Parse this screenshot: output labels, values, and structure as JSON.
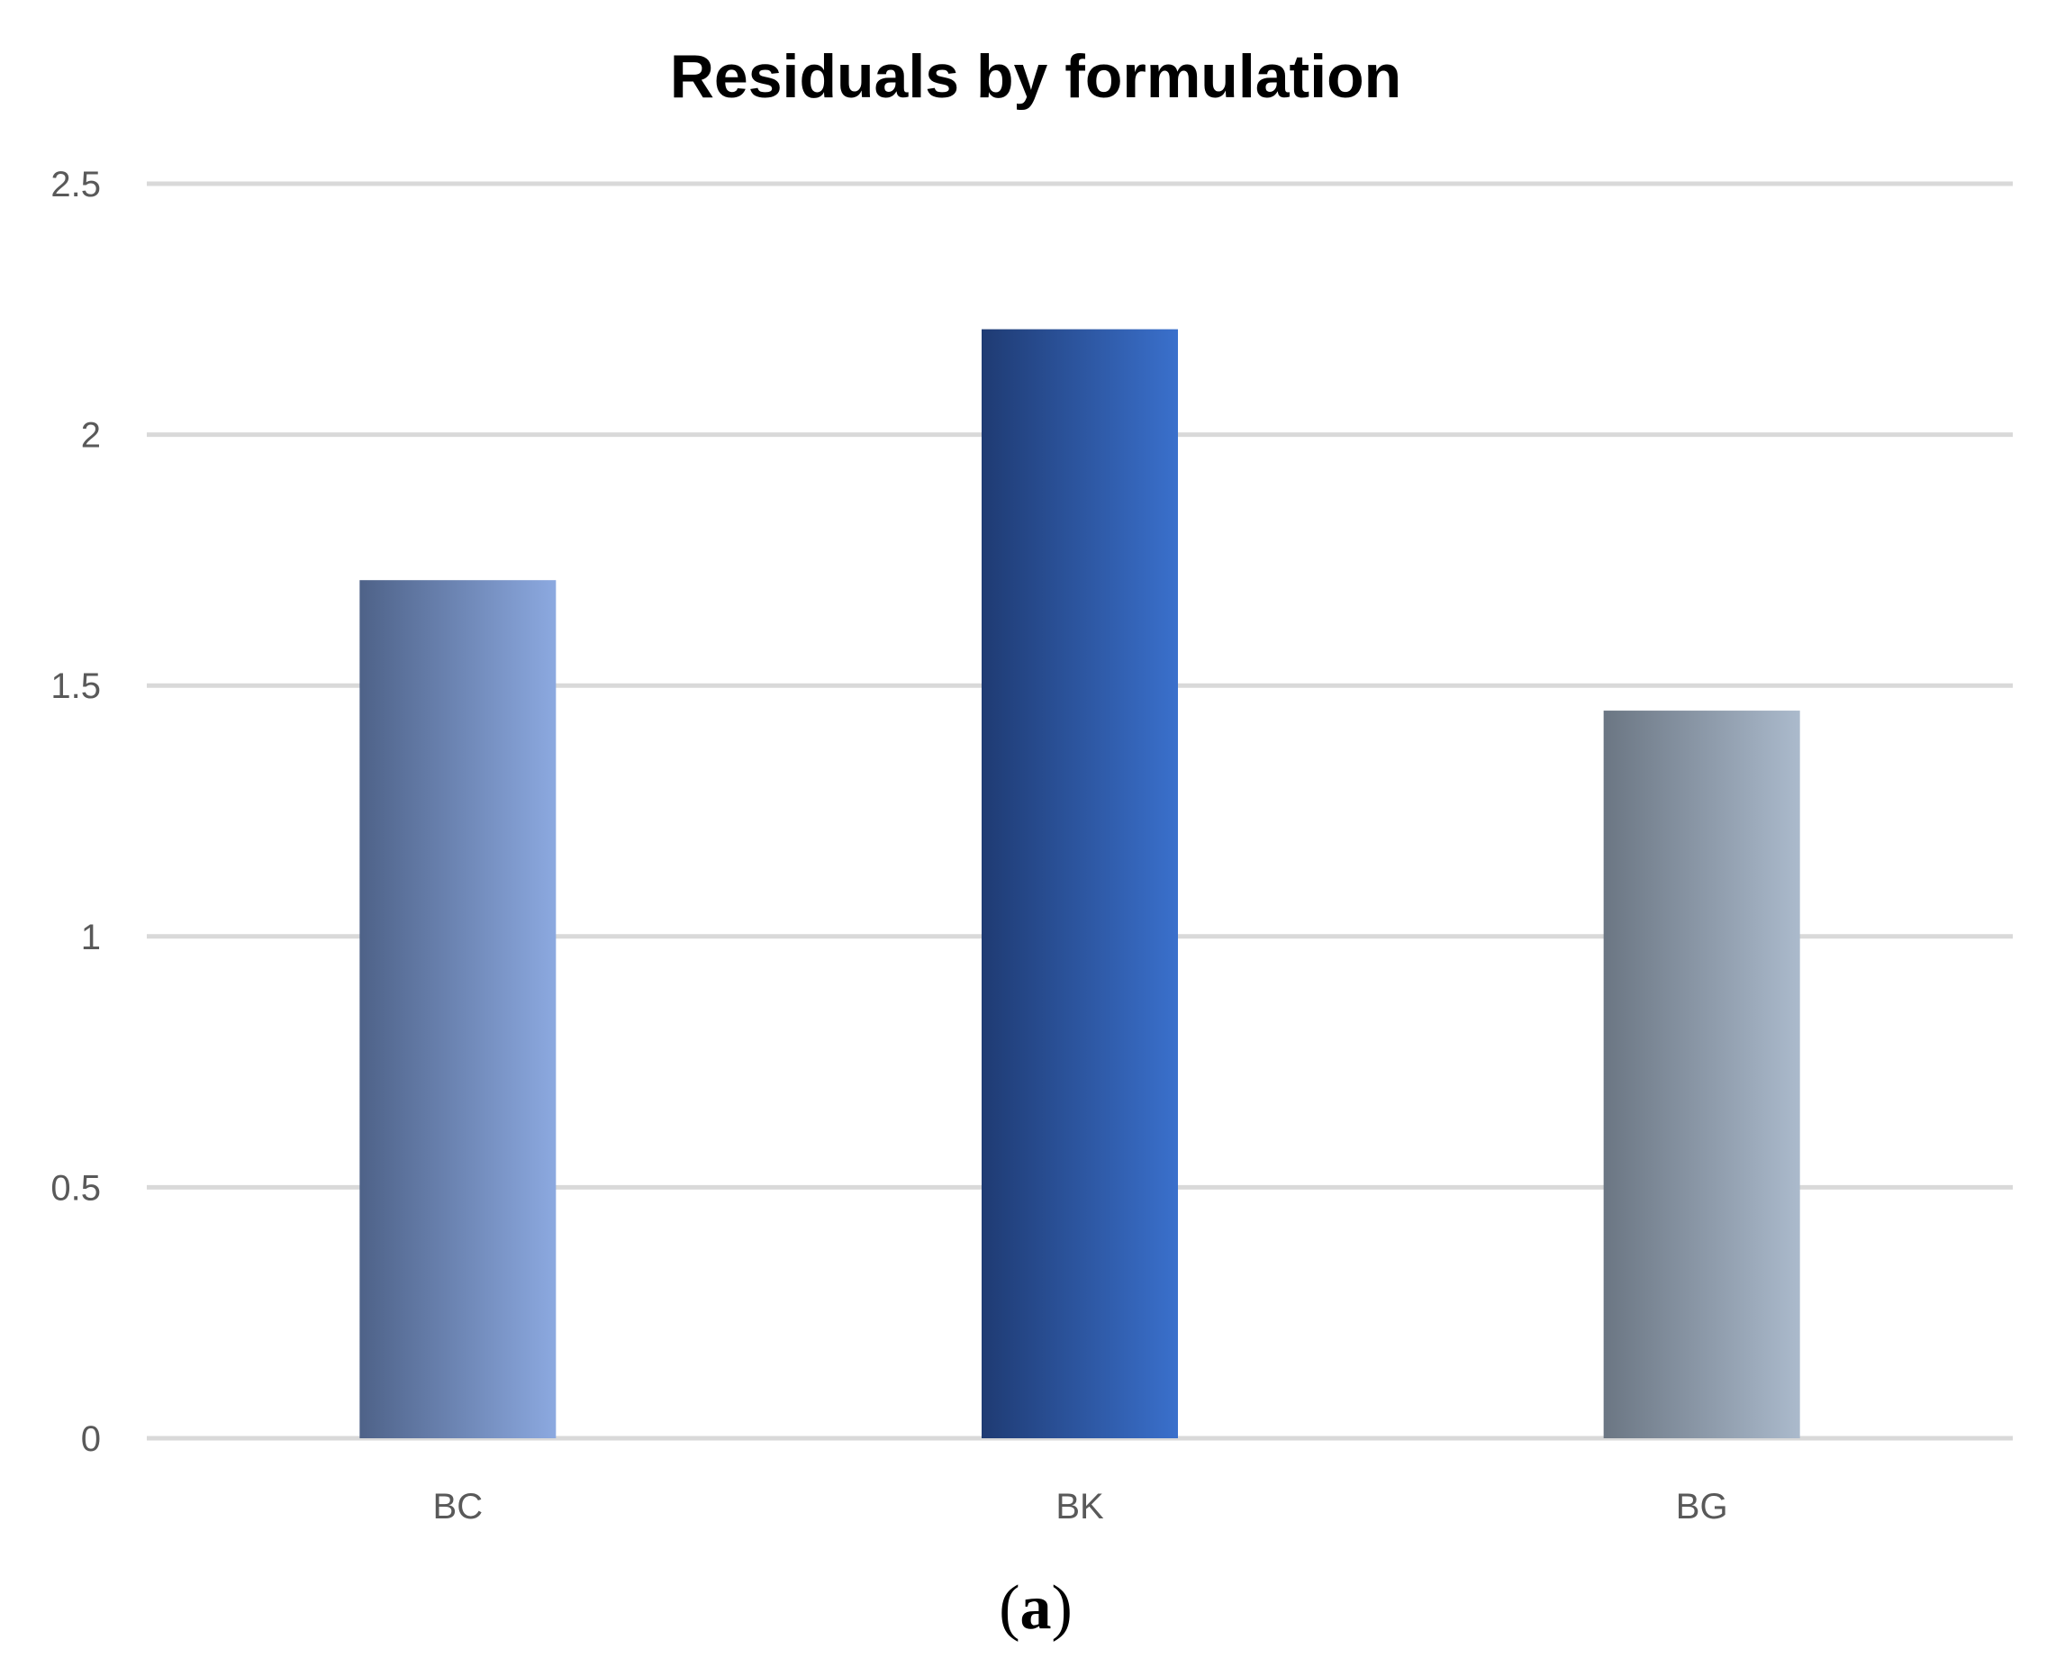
{
  "chart_data": {
    "type": "bar",
    "title": "Residuals by formulation",
    "categories": [
      "BC",
      "BK",
      "BG"
    ],
    "values": [
      1.71,
      2.21,
      1.45
    ],
    "ylim": [
      0,
      2.5
    ],
    "yticks": [
      "0",
      "0.5",
      "1",
      "1.5",
      "2",
      "2.5"
    ],
    "grid": true,
    "legend": "none",
    "bar_colors": [
      {
        "dark": "#4e6288",
        "light": "#8ca9e0"
      },
      {
        "dark": "#1f3b73",
        "light": "#3a70cc"
      },
      {
        "dark": "#6b7683",
        "light": "#abbacc"
      }
    ],
    "gridline_color": "#d9d9d9"
  },
  "caption": {
    "open": "(",
    "letter": "a",
    "close": ")"
  }
}
